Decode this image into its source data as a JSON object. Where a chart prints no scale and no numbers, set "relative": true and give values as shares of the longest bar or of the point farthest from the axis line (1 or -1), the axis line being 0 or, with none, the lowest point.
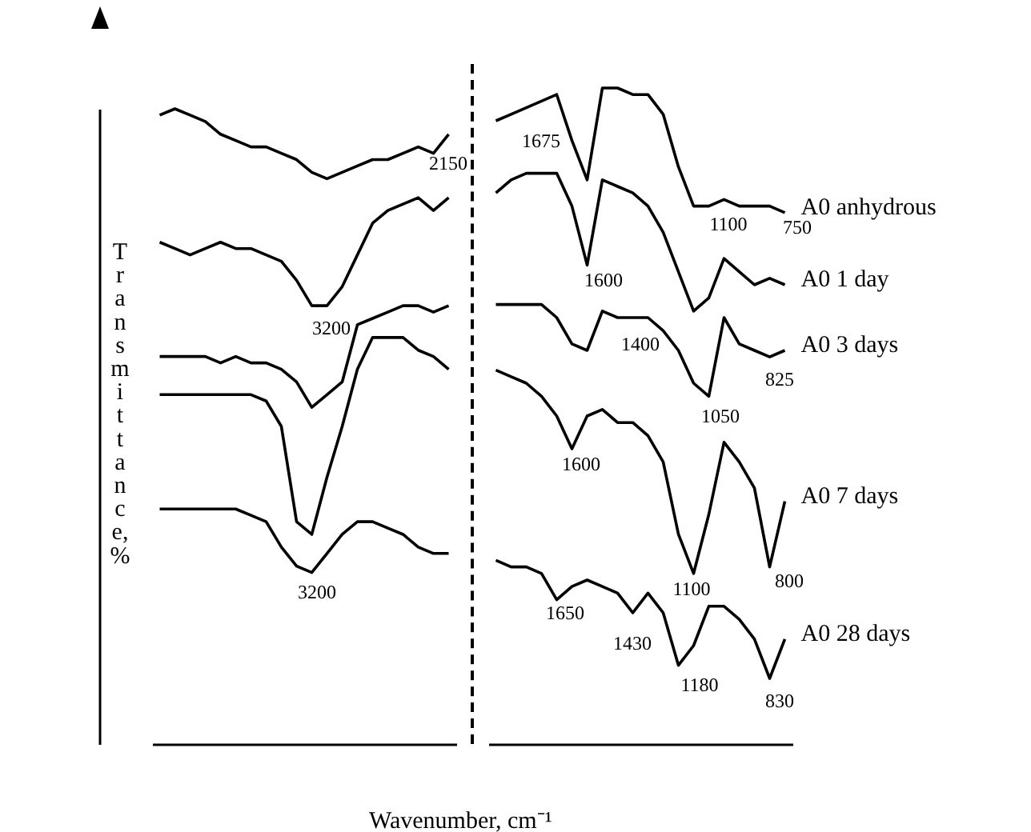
{
  "chart_data": [
    {
      "type": "line",
      "ylabel": "Transmittance, %",
      "relative": true,
      "legend": false,
      "grid": false,
      "marker": "none",
      "line_style": "solid",
      "categories": [
        null,
        null,
        null,
        null,
        null,
        null,
        null,
        null,
        null,
        null,
        null,
        null,
        null,
        null,
        null,
        null,
        null,
        null,
        null,
        null
      ],
      "annotations": [
        "2150",
        "3200",
        "3200"
      ],
      "series": [
        {
          "color": "#000000",
          "values": [
            0.99,
            1,
            0.99,
            0.98,
            0.96,
            0.95,
            0.94,
            0.94,
            0.93,
            0.92,
            0.9,
            0.89,
            0.9,
            0.91,
            0.92,
            0.92,
            0.93,
            0.94,
            0.93,
            0.96
          ]
        },
        {
          "color": "#000000",
          "values": [
            0.79,
            0.78,
            0.77,
            0.78,
            0.79,
            0.78,
            0.78,
            0.77,
            0.76,
            0.73,
            0.69,
            0.69,
            0.72,
            0.77,
            0.82,
            0.84,
            0.85,
            0.86,
            0.84,
            0.86
          ]
        },
        {
          "color": "#000000",
          "values": [
            0.61,
            0.61,
            0.61,
            0.61,
            0.6,
            0.61,
            0.6,
            0.6,
            0.59,
            0.57,
            0.53,
            0.55,
            0.57,
            0.66,
            0.67,
            0.68,
            0.69,
            0.69,
            0.68,
            0.69
          ]
        },
        {
          "color": "#000000",
          "values": [
            0.55,
            0.55,
            0.55,
            0.55,
            0.55,
            0.55,
            0.55,
            0.54,
            0.5,
            0.35,
            0.33,
            0.42,
            0.5,
            0.59,
            0.64,
            0.64,
            0.64,
            0.62,
            0.61,
            0.59
          ]
        },
        {
          "color": "#000000",
          "values": [
            0.37,
            0.37,
            0.37,
            0.37,
            0.37,
            0.37,
            0.36,
            0.35,
            0.31,
            0.28,
            0.27,
            0.3,
            0.33,
            0.35,
            0.35,
            0.34,
            0.33,
            0.31,
            0.3,
            0.3
          ]
        }
      ]
    },
    {
      "type": "line",
      "xlabel": "Wavenumber, cm⁻¹",
      "relative": true,
      "legend": false,
      "grid": false,
      "marker": "none",
      "line_style": "solid",
      "categories": [
        null,
        null,
        null,
        null,
        null,
        null,
        null,
        null,
        null,
        null,
        null,
        null,
        null,
        null,
        null,
        null,
        null,
        null,
        null,
        null
      ],
      "annotations": [
        "1675",
        "1100",
        "750",
        "1600",
        "1400",
        "825",
        "1050",
        "1600",
        "1100",
        "800",
        "1650",
        "1430",
        "1180",
        "830"
      ],
      "series": [
        {
          "name": "A0 anhydrous",
          "color": "#000000",
          "values": [
            0.95,
            0.96,
            0.97,
            0.98,
            0.99,
            0.92,
            0.86,
            1,
            1,
            0.99,
            0.99,
            0.96,
            0.88,
            0.82,
            0.82,
            0.83,
            0.82,
            0.82,
            0.82,
            0.81
          ]
        },
        {
          "name": "A0 1 day",
          "color": "#000000",
          "values": [
            0.84,
            0.86,
            0.87,
            0.87,
            0.87,
            0.82,
            0.73,
            0.86,
            0.85,
            0.84,
            0.82,
            0.78,
            0.72,
            0.66,
            0.68,
            0.74,
            0.72,
            0.7,
            0.71,
            0.7
          ]
        },
        {
          "name": "A0 3 days",
          "color": "#000000",
          "values": [
            0.67,
            0.67,
            0.67,
            0.67,
            0.65,
            0.61,
            0.6,
            0.66,
            0.65,
            0.65,
            0.65,
            0.63,
            0.6,
            0.55,
            0.53,
            0.65,
            0.61,
            0.6,
            0.59,
            0.6
          ]
        },
        {
          "name": "A0 7 days",
          "color": "#000000",
          "values": [
            0.57,
            0.56,
            0.55,
            0.53,
            0.5,
            0.45,
            0.5,
            0.51,
            0.49,
            0.49,
            0.47,
            0.43,
            0.32,
            0.26,
            0.35,
            0.46,
            0.43,
            0.39,
            0.27,
            0.37
          ]
        },
        {
          "name": "A0 28 days",
          "color": "#000000",
          "values": [
            0.28,
            0.27,
            0.27,
            0.26,
            0.22,
            0.24,
            0.25,
            0.24,
            0.23,
            0.2,
            0.23,
            0.2,
            0.12,
            0.15,
            0.21,
            0.21,
            0.19,
            0.16,
            0.1,
            0.16
          ]
        }
      ]
    }
  ]
}
